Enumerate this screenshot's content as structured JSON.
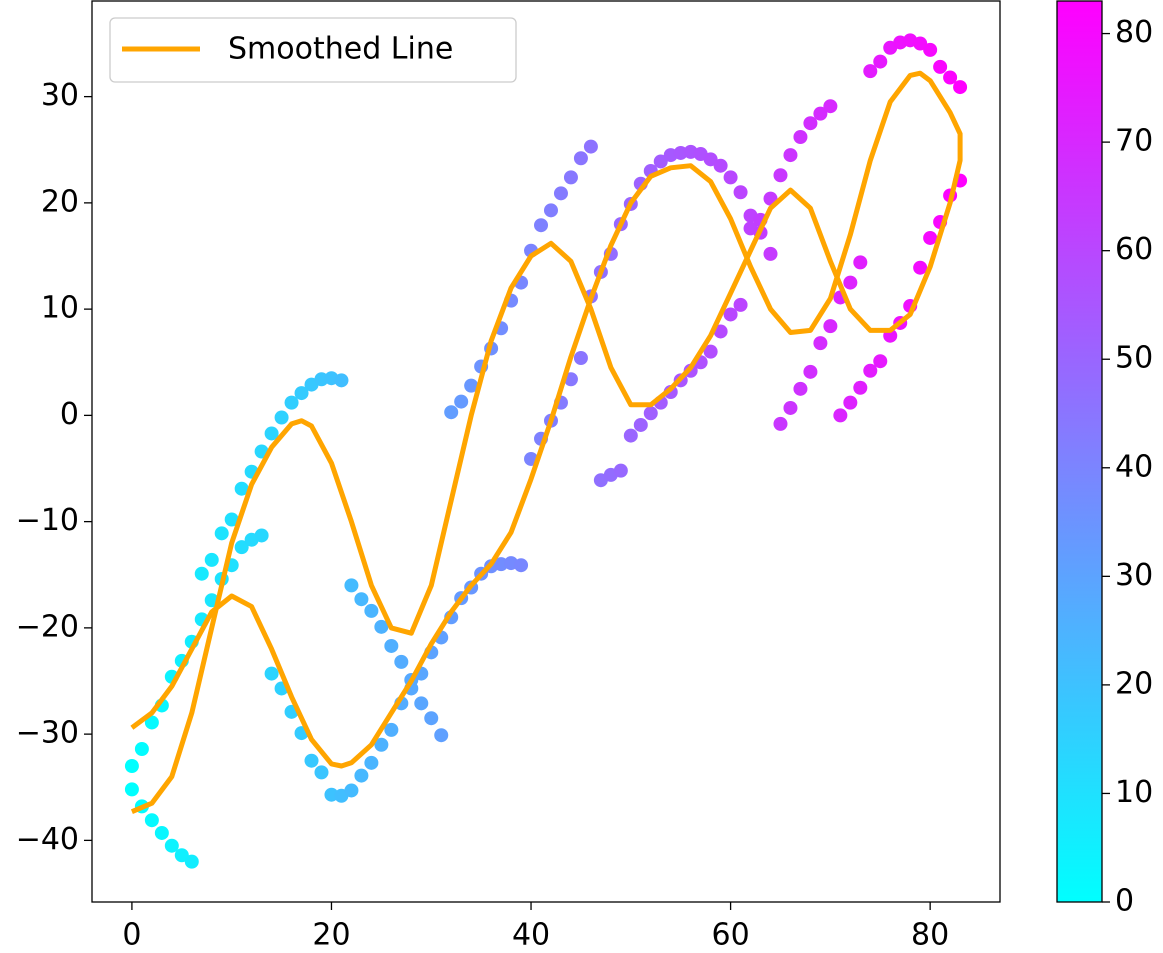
{
  "chart_data": {
    "type": "scatter",
    "xlim": [
      -4,
      87
    ],
    "ylim": [
      -45.8,
      39.0
    ],
    "xticks": [
      0,
      20,
      40,
      60,
      80
    ],
    "yticks": [
      {
        "value": -40,
        "label": "−40"
      },
      {
        "value": -30,
        "label": "−30"
      },
      {
        "value": -20,
        "label": "−20"
      },
      {
        "value": -10,
        "label": "−10"
      },
      0,
      10,
      20,
      30
    ],
    "colormap": "cool",
    "color_by": "x",
    "colorbar": {
      "lim": [
        0,
        83
      ],
      "ticks": [
        0,
        10,
        20,
        30,
        40,
        50,
        60,
        70,
        80
      ]
    },
    "legend": "upper left",
    "x": [
      0,
      0,
      1,
      1,
      2,
      2,
      3,
      3,
      4,
      4,
      5,
      5,
      6,
      6,
      7,
      7,
      8,
      8,
      9,
      9,
      10,
      10,
      11,
      11,
      12,
      12,
      13,
      13,
      14,
      14,
      15,
      15,
      16,
      16,
      17,
      17,
      18,
      18,
      19,
      19,
      20,
      20,
      21,
      21,
      22,
      22,
      23,
      23,
      24,
      24,
      25,
      25,
      26,
      26,
      27,
      27,
      28,
      28,
      29,
      29,
      30,
      30,
      31,
      31,
      32,
      32,
      33,
      33,
      34,
      34,
      35,
      35,
      36,
      36,
      37,
      37,
      38,
      38,
      39,
      39,
      40,
      40,
      41,
      41,
      42,
      42,
      43,
      43,
      44,
      44,
      45,
      45,
      46,
      46,
      47,
      47,
      48,
      48,
      49,
      49,
      50,
      50,
      51,
      51,
      52,
      52,
      53,
      53,
      54,
      54,
      55,
      55,
      56,
      56,
      57,
      57,
      58,
      58,
      59,
      59,
      60,
      60,
      61,
      61,
      62,
      62,
      63,
      63,
      64,
      64,
      65,
      65,
      66,
      66,
      67,
      67,
      68,
      68,
      69,
      69,
      70,
      70,
      71,
      71,
      72,
      72,
      73,
      73,
      74,
      74,
      75,
      75,
      76,
      76,
      77,
      77,
      78,
      78,
      79,
      79,
      80,
      80,
      81,
      81,
      82,
      82,
      83,
      83
    ],
    "y": [
      -33,
      -35.2,
      -31.4,
      -36.8,
      -28.9,
      -38.1,
      -27.3,
      -39.3,
      -24.6,
      -40.5,
      -23.1,
      -41.4,
      -21.3,
      -42,
      -14.9,
      -19.2,
      -13.6,
      -17.4,
      -11.1,
      -15.4,
      -9.8,
      -14.1,
      -6.9,
      -12.4,
      -5.3,
      -11.7,
      -3.4,
      -11.3,
      -1.7,
      -24.3,
      -0.2,
      -25.7,
      1.2,
      -27.9,
      2.1,
      -29.9,
      2.9,
      -32.5,
      3.4,
      -33.6,
      3.5,
      -35.7,
      3.3,
      -35.8,
      -16,
      -35.3,
      -17.3,
      -33.9,
      -18.4,
      -32.7,
      -19.9,
      -31.0,
      -21.7,
      -29.6,
      -23.2,
      -27.1,
      -24.9,
      -25.7,
      -27.1,
      -24.3,
      -28.5,
      -22.3,
      -30.1,
      -20.9,
      0.3,
      -19.0,
      1.3,
      -17.2,
      2.8,
      -16.2,
      4.6,
      -14.9,
      6.3,
      -14.2,
      8.2,
      -14.0,
      10.8,
      -13.9,
      12.5,
      -14.1,
      15.5,
      -4.1,
      17.9,
      -2.2,
      19.3,
      -0.5,
      20.9,
      1.2,
      22.4,
      3.4,
      24.2,
      5.4,
      25.3,
      11.2,
      13.5,
      -6.1,
      15.2,
      -5.6,
      18.0,
      -5.2,
      19.9,
      -1.9,
      21.8,
      -0.9,
      23.0,
      0.2,
      23.9,
      1.2,
      24.5,
      2.2,
      24.7,
      3.3,
      24.8,
      4.2,
      24.6,
      5.0,
      24.1,
      6.0,
      23.5,
      7.9,
      22.4,
      9.5,
      21.0,
      10.4,
      18.8,
      17.6,
      17.2,
      18.4,
      15.2,
      20.4,
      -0.8,
      22.6,
      0.7,
      24.5,
      2.5,
      26.2,
      4.1,
      27.5,
      6.8,
      28.4,
      8.4,
      29.1,
      11.1,
      0.0,
      12.5,
      1.2,
      14.4,
      2.6,
      4.2,
      32.4,
      5.1,
      33.3,
      7.5,
      34.6,
      8.7,
      35.1,
      10.3,
      35.3,
      13.9,
      35.0,
      16.7,
      34.4,
      18.2,
      32.8,
      20.7,
      31.8,
      22.1,
      30.9
    ],
    "line": {
      "name": "Smoothed Line",
      "color": "#ffa500",
      "x": [
        0,
        2,
        4,
        6,
        8,
        10,
        12,
        14,
        16,
        17,
        18,
        20,
        22,
        24,
        26,
        28,
        30,
        32,
        34,
        36,
        38,
        40,
        42,
        44,
        46,
        48,
        50,
        52,
        54,
        56,
        58,
        60,
        62,
        64,
        66,
        68,
        70,
        72,
        74,
        76,
        78,
        80,
        82,
        83,
        83,
        82,
        80,
        79,
        78,
        76,
        74,
        72,
        70,
        68,
        66,
        64,
        62,
        60,
        58,
        56,
        54,
        52,
        50,
        48,
        46,
        44,
        42,
        40,
        38,
        36,
        34,
        32,
        30,
        28,
        26,
        24,
        22,
        21,
        20,
        18,
        16,
        14,
        12,
        10,
        8,
        6,
        4,
        2,
        0
      ],
      "y": [
        -37.3,
        -36.5,
        -34,
        -28,
        -20,
        -12,
        -6.5,
        -3,
        -0.8,
        -0.5,
        -1,
        -4.5,
        -10,
        -16,
        -20,
        -20.5,
        -16,
        -8,
        0,
        7,
        12,
        15,
        16.2,
        14.5,
        10,
        4.5,
        1,
        1,
        2.5,
        4.5,
        7.5,
        11.5,
        15.5,
        19.5,
        21.2,
        19.5,
        14.5,
        10,
        8,
        8,
        9.5,
        14,
        20,
        24,
        26.5,
        28.5,
        31.5,
        32.2,
        32,
        29.5,
        24,
        17,
        11,
        8,
        7.8,
        10,
        14,
        18.5,
        22,
        23.5,
        23.3,
        22.5,
        20,
        16,
        11,
        5.5,
        -0.5,
        -6,
        -11,
        -14,
        -16,
        -18.5,
        -21.5,
        -25,
        -28,
        -31,
        -32.7,
        -33,
        -32.8,
        -30.5,
        -26.5,
        -22,
        -18,
        -17,
        -18.5,
        -22,
        -25.5,
        -28,
        -29.4
      ]
    }
  }
}
